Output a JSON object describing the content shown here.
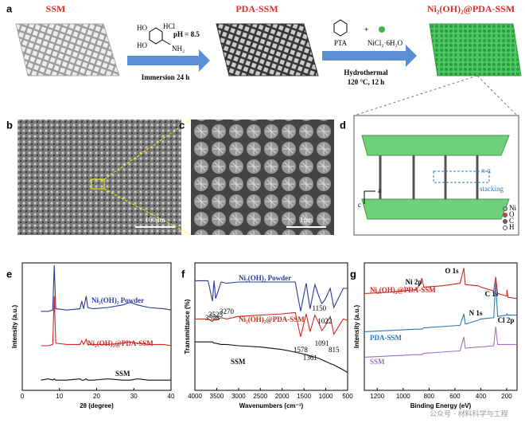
{
  "figure": {
    "panel_labels": [
      "a",
      "b",
      "c",
      "d",
      "e",
      "f",
      "g"
    ],
    "a": {
      "ssm": "SSM",
      "pda_ssm": "PDA-SSM",
      "product": "Ni₂(OH)₂@PDA-SSM",
      "ph": "pH = 8.5",
      "hcl": "HCl",
      "ho1": "HO",
      "ho2": "HO",
      "nh2": "NH₂",
      "step1": "Immersion 24 h",
      "pta": "PTA",
      "nicl": "NiCl₂·6H₂O",
      "step2": "Hydrothermal",
      "cond": "120 °C, 12 h"
    },
    "b": {
      "scale": "100μm"
    },
    "c": {
      "scale": "1μm"
    },
    "d": {
      "axis_a": "a",
      "axis_c": "c",
      "pi": "π-π",
      "stacking": "stacking",
      "legend": [
        "Ni",
        "O",
        "C",
        "H"
      ]
    },
    "watermark": "公众号 · 材料科学与工程"
  },
  "chart_data": [
    {
      "type": "line",
      "xlabel": "2θ (degree)",
      "ylabel": "Intensity (a.u.)",
      "xlim": [
        0,
        40
      ],
      "xticks": [
        0,
        10,
        20,
        30,
        40
      ],
      "ylim": [
        0,
        10
      ],
      "x": [
        5,
        7,
        8.2,
        8.6,
        9,
        12,
        15.5,
        16,
        16.5,
        17.2,
        17.6,
        19,
        23,
        27,
        29,
        31,
        34,
        38,
        40
      ],
      "series": [
        {
          "name": "Ni₂(OH)₂ Powder",
          "color": "#2a3a9c",
          "values": [
            6.2,
            6.2,
            6.3,
            9.8,
            6.4,
            6.3,
            6.4,
            7.0,
            6.4,
            7.4,
            6.5,
            6.4,
            6.5,
            6.7,
            6.9,
            6.7,
            6.5,
            6.4,
            6.3
          ]
        },
        {
          "name": "Ni₂(OH)₂@PDA-SSM",
          "color": "#d02a22",
          "values": [
            3.5,
            3.5,
            3.6,
            7.4,
            3.7,
            3.6,
            3.6,
            3.9,
            3.6,
            4.0,
            3.6,
            3.6,
            3.6,
            3.7,
            3.8,
            3.7,
            3.6,
            3.6,
            3.5
          ]
        },
        {
          "name": "SSM",
          "color": "#111111",
          "values": [
            0.8,
            0.9,
            0.8,
            0.9,
            0.8,
            0.8,
            0.9,
            0.8,
            0.8,
            0.9,
            0.8,
            0.8,
            0.9,
            0.8,
            0.8,
            0.9,
            0.8,
            0.8,
            0.8
          ]
        }
      ]
    },
    {
      "type": "line",
      "xlabel": "Wavenumbers (cm⁻¹)",
      "ylabel": "Transmittance (%)",
      "xlim": [
        4000,
        500
      ],
      "xticks": [
        4000,
        3500,
        3000,
        2500,
        2000,
        1500,
        1000,
        500
      ],
      "ylim": [
        0,
        10
      ],
      "x": [
        4000,
        3700,
        3598,
        3560,
        3525,
        3400,
        3270,
        3000,
        2500,
        2000,
        1700,
        1578,
        1450,
        1361,
        1250,
        1150,
        1091,
        1022,
        900,
        815,
        600,
        500
      ],
      "series": [
        {
          "name": "Ni₂(OH)₂ Powder",
          "color": "#2a3a9c",
          "values": [
            8.6,
            8.6,
            7.0,
            8.6,
            7.2,
            8.5,
            8.4,
            8.5,
            8.5,
            8.5,
            8.5,
            6.2,
            8.4,
            6.4,
            8.3,
            7.3,
            6.8,
            7.1,
            8.0,
            6.5,
            8.0,
            8.0
          ]
        },
        {
          "name": "Ni₂(OH)₂@PDA-SSM",
          "color": "#d02a22",
          "values": [
            5.6,
            5.6,
            5.4,
            5.6,
            5.5,
            5.7,
            5.6,
            5.8,
            5.9,
            6.0,
            6.1,
            4.2,
            6.0,
            4.6,
            5.9,
            5.2,
            4.7,
            5.0,
            5.8,
            4.4,
            5.6,
            5.5
          ]
        },
        {
          "name": "SSM",
          "color": "#111111",
          "values": [
            3.8,
            3.8,
            3.8,
            3.7,
            3.7,
            3.6,
            3.6,
            3.5,
            3.4,
            3.2,
            3.0,
            2.9,
            2.8,
            2.7,
            2.6,
            2.5,
            2.4,
            2.3,
            2.1,
            2.0,
            1.6,
            1.4
          ]
        }
      ],
      "peak_labels": [
        3598,
        3525,
        3270,
        1578,
        1361,
        1150,
        1091,
        1022,
        815
      ]
    },
    {
      "type": "line",
      "xlabel": "Binding Energy (eV)",
      "ylabel": "Intensity (a.u.)",
      "xlim": [
        1300,
        120
      ],
      "xticks": [
        1200,
        1000,
        800,
        600,
        400,
        200
      ],
      "ylim": [
        0,
        10
      ],
      "x": [
        1300,
        1100,
        900,
        870,
        855,
        840,
        700,
        560,
        531,
        520,
        420,
        400,
        300,
        285,
        270,
        200,
        198,
        190,
        120
      ],
      "series": [
        {
          "name": "Ni₂(OH)₂@PDA-SSM",
          "color": "#d02a22",
          "values": [
            7.6,
            7.7,
            7.9,
            8.3,
            8.8,
            8.1,
            8.2,
            8.4,
            9.6,
            8.3,
            8.2,
            8.1,
            7.8,
            8.9,
            7.6,
            7.4,
            7.9,
            7.3,
            7.2
          ]
        },
        {
          "name": "PDA-SSM",
          "color": "#2a78b8",
          "values": [
            4.6,
            4.7,
            4.8,
            4.8,
            4.8,
            4.9,
            5.0,
            5.1,
            6.0,
            5.2,
            5.5,
            5.6,
            5.7,
            8.5,
            5.8,
            5.9,
            6.0,
            5.9,
            5.9
          ]
        },
        {
          "name": "SSM",
          "color": "#a070c0",
          "values": [
            2.6,
            2.7,
            2.8,
            2.8,
            2.8,
            2.9,
            3.0,
            3.1,
            4.2,
            3.3,
            3.4,
            3.4,
            3.5,
            5.0,
            3.6,
            3.6,
            3.6,
            3.6,
            3.6
          ]
        }
      ],
      "annotations": [
        "Ni 2p",
        "O 1s",
        "C 1s",
        "N 1s",
        "Cl 2p"
      ]
    }
  ]
}
